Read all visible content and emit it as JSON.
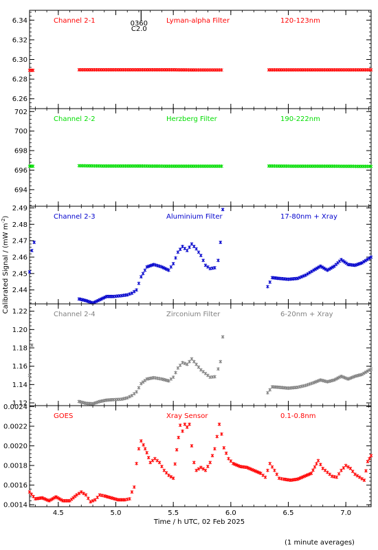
{
  "figure": {
    "ylabel": "Calibrated Signal / (mW m",
    "ylabel_sup": "-2",
    "ylabel_end": ")",
    "xlabel": "Time / h UTC, 02 Feb 2025",
    "footnote": "(1 minute averages)",
    "marker": {
      "label_top": "0360",
      "label_bottom": "C2.0",
      "x": 5.22
    },
    "xlim": [
      4.25,
      7.22
    ],
    "xticks": [
      4.5,
      5.0,
      5.5,
      6.0,
      6.5,
      7.0
    ],
    "xtick_labels": [
      "4.5",
      "5.0",
      "5.5",
      "6.0",
      "6.5",
      "7.0"
    ]
  },
  "chart_data": [
    {
      "type": "scatter",
      "channel": "Channel 2-1",
      "filter": "Lyman-alpha Filter",
      "band": "120-123nm",
      "color": "#ff0000",
      "ylim": [
        6.25,
        6.35
      ],
      "yticks": [
        6.26,
        6.28,
        6.3,
        6.32,
        6.34
      ],
      "ytick_labels": [
        "6.26",
        "6.28",
        "6.30",
        "6.32",
        "6.34"
      ],
      "segments": [
        {
          "x": [
            4.25,
            4.28
          ],
          "y": [
            6.289,
            6.289
          ]
        },
        {
          "x": [
            4.68,
            4.9,
            5.2,
            5.5,
            5.7,
            5.92
          ],
          "y": [
            6.2895,
            6.2895,
            6.2895,
            6.2895,
            6.2893,
            6.2893
          ]
        },
        {
          "x": [
            6.33,
            6.6,
            6.9,
            7.22
          ],
          "y": [
            6.2894,
            6.2894,
            6.2894,
            6.2894
          ]
        }
      ]
    },
    {
      "type": "scatter",
      "channel": "Channel 2-2",
      "filter": "Herzberg Filter",
      "band": "190-222nm",
      "color": "#00dd00",
      "ylim": [
        692.3,
        702.3
      ],
      "yticks": [
        694,
        696,
        698,
        700,
        702
      ],
      "ytick_labels": [
        "694",
        "696",
        "698",
        "700",
        "702"
      ],
      "segments": [
        {
          "x": [
            4.25,
            4.28
          ],
          "y": [
            696.4,
            696.4
          ]
        },
        {
          "x": [
            4.68,
            4.9,
            5.2,
            5.5,
            5.7,
            5.92
          ],
          "y": [
            696.45,
            696.42,
            696.42,
            696.4,
            696.4,
            696.4
          ]
        },
        {
          "x": [
            6.33,
            6.6,
            6.9,
            7.22
          ],
          "y": [
            696.42,
            696.4,
            696.4,
            696.38
          ]
        }
      ]
    },
    {
      "type": "scatter",
      "channel": "Channel 2-3",
      "filter": "Aluminium Filter",
      "band": "17-80nm + Xray",
      "color": "#0000cc",
      "ylim": [
        2.4315,
        2.491
      ],
      "yticks": [
        2.44,
        2.45,
        2.46,
        2.47,
        2.48,
        2.49
      ],
      "ytick_labels": [
        "2.44",
        "2.45",
        "2.46",
        "2.47",
        "2.48",
        "2.49"
      ],
      "segments": [
        {
          "x": [
            4.25,
            4.27,
            4.29
          ],
          "y": [
            2.451,
            2.464,
            2.469
          ]
        },
        {
          "x": [
            4.68,
            4.74,
            4.8,
            4.86,
            4.92,
            4.98,
            5.05,
            5.1,
            5.14,
            5.18,
            5.22,
            5.27,
            5.33,
            5.4,
            5.46,
            5.5,
            5.54,
            5.58,
            5.62,
            5.66,
            5.7,
            5.74,
            5.78,
            5.82,
            5.86
          ],
          "y": [
            2.4345,
            2.4335,
            2.432,
            2.434,
            2.436,
            2.436,
            2.4365,
            2.437,
            2.438,
            2.44,
            2.448,
            2.454,
            2.4555,
            2.454,
            2.452,
            2.456,
            2.463,
            2.4665,
            2.464,
            2.468,
            2.465,
            2.461,
            2.455,
            2.453,
            2.4535
          ]
        },
        {
          "x": [
            5.89,
            5.91,
            5.93
          ],
          "y": [
            2.458,
            2.469,
            2.489
          ]
        },
        {
          "x": [
            6.32,
            6.36,
            6.42,
            6.5,
            6.58,
            6.65,
            6.72,
            6.78,
            6.84,
            6.9,
            6.96,
            7.02,
            7.08,
            7.14,
            7.22
          ],
          "y": [
            2.442,
            2.4475,
            2.447,
            2.4465,
            2.447,
            2.449,
            2.452,
            2.4545,
            2.452,
            2.4545,
            2.4585,
            2.4555,
            2.455,
            2.4565,
            2.46
          ]
        }
      ]
    },
    {
      "type": "scatter",
      "channel": "Channel 2-4",
      "filter": "Zirconium Filter",
      "band": "6-20nm + Xray",
      "color": "#808080",
      "ylim": [
        1.117,
        1.228
      ],
      "yticks": [
        1.12,
        1.14,
        1.16,
        1.18,
        1.2,
        1.22
      ],
      "ytick_labels": [
        "1.12",
        "1.14",
        "1.16",
        "1.18",
        "1.20",
        "1.22"
      ],
      "segments": [
        {
          "x": [
            4.25,
            4.27
          ],
          "y": [
            1.15,
            1.183
          ]
        },
        {
          "x": [
            4.68,
            4.74,
            4.8,
            4.86,
            4.92,
            4.98,
            5.05,
            5.1,
            5.14,
            5.18,
            5.22,
            5.27,
            5.33,
            5.4,
            5.46,
            5.5,
            5.54,
            5.58,
            5.62,
            5.66,
            5.7,
            5.74,
            5.78,
            5.82,
            5.86
          ],
          "y": [
            1.1215,
            1.1195,
            1.119,
            1.1215,
            1.123,
            1.1235,
            1.124,
            1.1255,
            1.128,
            1.132,
            1.141,
            1.146,
            1.1475,
            1.146,
            1.144,
            1.148,
            1.158,
            1.164,
            1.162,
            1.168,
            1.162,
            1.156,
            1.152,
            1.148,
            1.1485
          ]
        },
        {
          "x": [
            5.89,
            5.91,
            5.93
          ],
          "y": [
            1.157,
            1.165,
            1.192
          ]
        },
        {
          "x": [
            6.32,
            6.36,
            6.42,
            6.5,
            6.58,
            6.65,
            6.72,
            6.78,
            6.84,
            6.9,
            6.96,
            7.02,
            7.08,
            7.14,
            7.22
          ],
          "y": [
            1.131,
            1.1375,
            1.137,
            1.136,
            1.137,
            1.139,
            1.142,
            1.145,
            1.143,
            1.145,
            1.149,
            1.146,
            1.149,
            1.151,
            1.157
          ]
        }
      ]
    },
    {
      "type": "scatter",
      "channel": "GOES",
      "filter": "Xray Sensor",
      "band": "0.1-0.8nm",
      "color": "#ff0000",
      "ylim": [
        0.00138,
        0.00241
      ],
      "yticks": [
        0.0014,
        0.0016,
        0.0018,
        0.002,
        0.0022,
        0.0024
      ],
      "ytick_labels": [
        "0.0014",
        "0.0016",
        "0.0018",
        "0.0020",
        "0.0022",
        "0.0024"
      ],
      "segments": [
        {
          "x": [
            4.25,
            4.3,
            4.36,
            4.42,
            4.48,
            4.54,
            4.6,
            4.66,
            4.7,
            4.74,
            4.78,
            4.82,
            4.86,
            4.9,
            4.96,
            5.02,
            5.08,
            5.12,
            5.14,
            5.16
          ],
          "y": [
            0.00153,
            0.00146,
            0.00147,
            0.00144,
            0.00148,
            0.00144,
            0.00144,
            0.0015,
            0.00153,
            0.0015,
            0.00143,
            0.00145,
            0.0015,
            0.00149,
            0.00147,
            0.00145,
            0.00145,
            0.00146,
            0.00153,
            0.00158
          ]
        },
        {
          "x": [
            5.18,
            5.2,
            5.22,
            5.24,
            5.27,
            5.3,
            5.34,
            5.38,
            5.42,
            5.46,
            5.5,
            5.53,
            5.56,
            5.58,
            5.6,
            5.62,
            5.64,
            5.66,
            5.68,
            5.7,
            5.74,
            5.78,
            5.82,
            5.86,
            5.9,
            5.92
          ],
          "y": [
            0.00182,
            0.00197,
            0.00205,
            0.00201,
            0.00193,
            0.00183,
            0.00187,
            0.00183,
            0.00175,
            0.0017,
            0.00167,
            0.00196,
            0.00221,
            0.00215,
            0.00222,
            0.00219,
            0.00222,
            0.002,
            0.00183,
            0.00175,
            0.00178,
            0.00175,
            0.00183,
            0.00197,
            0.00222,
            0.00212
          ]
        },
        {
          "x": [
            5.94,
            5.98,
            6.02,
            6.08,
            6.14,
            6.2,
            6.26,
            6.3,
            6.34,
            6.38,
            6.42,
            6.46,
            6.52,
            6.58,
            6.64,
            6.7,
            6.76,
            6.8,
            6.84,
            6.88,
            6.92,
            6.96,
            7.0,
            7.04,
            7.08,
            7.12,
            7.16,
            7.19,
            7.22
          ],
          "y": [
            0.00198,
            0.00187,
            0.00182,
            0.00179,
            0.00178,
            0.00175,
            0.00172,
            0.00168,
            0.00182,
            0.00175,
            0.00167,
            0.00166,
            0.00165,
            0.00166,
            0.00169,
            0.00172,
            0.00185,
            0.00177,
            0.00173,
            0.00169,
            0.00168,
            0.00175,
            0.0018,
            0.00177,
            0.00171,
            0.00168,
            0.00165,
            0.00184,
            0.0019
          ]
        }
      ]
    }
  ]
}
